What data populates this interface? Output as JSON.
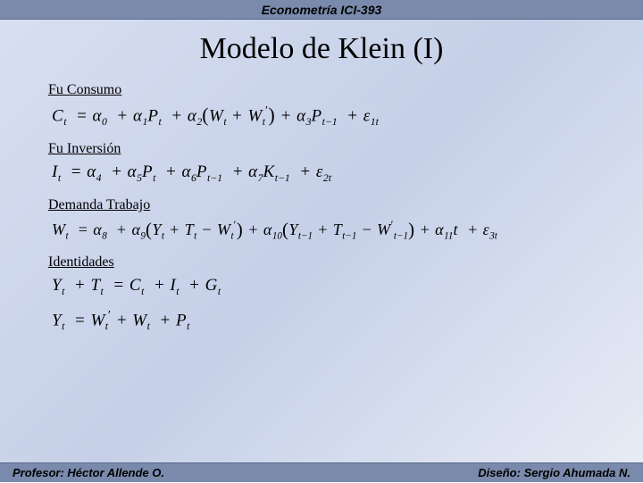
{
  "header": {
    "course": "Econometría ICI-393"
  },
  "title": "Modelo de Klein (I)",
  "sections": {
    "consumo": {
      "label": "Fu  Consumo"
    },
    "inversion": {
      "label": "Fu  Inversión"
    },
    "demanda": {
      "label": "Demanda Trabajo"
    },
    "identidades": {
      "label": "Identidades"
    }
  },
  "equations": {
    "consumo": {
      "lhs_var": "C",
      "lhs_sub": "t",
      "a0": "0",
      "a1": "1",
      "a2": "2",
      "a3": "3",
      "P": "P",
      "W": "W",
      "eps": "ε",
      "eps_sub": "1t"
    },
    "inversion": {
      "lhs_var": "I",
      "lhs_sub": "t",
      "a4": "4",
      "a5": "5",
      "a6": "6",
      "a7": "7",
      "P": "P",
      "K": "K",
      "eps": "ε",
      "eps_sub": "2t"
    },
    "demanda": {
      "lhs_var": "W",
      "lhs_sub": "t",
      "a8": "8",
      "a9": "9",
      "a10": "10",
      "a11": "11",
      "Y": "Y",
      "T": "T",
      "W": "W",
      "t": "t",
      "eps": "ε",
      "eps_sub": "3t"
    },
    "ident1": {
      "Y": "Y",
      "T": "T",
      "C": "C",
      "I": "I",
      "G": "G"
    },
    "ident2": {
      "Y": "Y",
      "W": "W",
      "P": "P"
    }
  },
  "footer": {
    "left_label": "Profesor: ",
    "left_name": "Héctor Allende O.",
    "right_label": "Diseño: ",
    "right_name": "Sergio Ahumada N."
  },
  "colors": {
    "bg_start": "#d8dff0",
    "bg_end": "#e8ecf5",
    "bar": "#7a8aac"
  }
}
